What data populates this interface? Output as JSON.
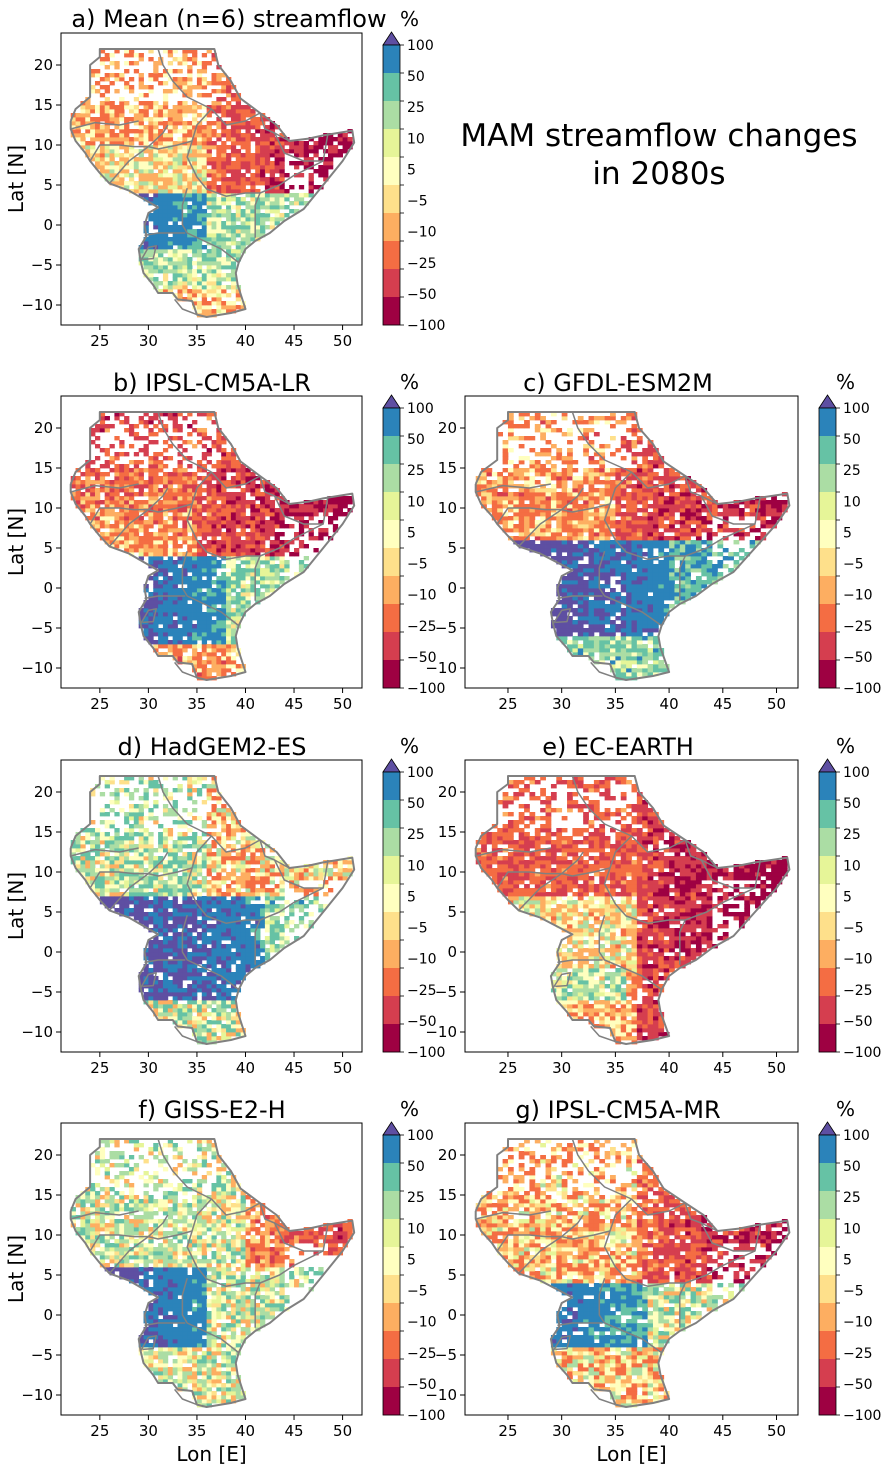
{
  "figure": {
    "title_lines": [
      "MAM streamflow changes",
      "in 2080s"
    ],
    "xlabel": "Lon [E]",
    "ylabel": "Lat [N]",
    "x_ticks": [
      25,
      30,
      35,
      40,
      45,
      50
    ],
    "y_ticks": [
      20,
      15,
      10,
      5,
      0,
      -5,
      -10
    ],
    "xlim": [
      21,
      52
    ],
    "ylim": [
      -12.5,
      24
    ],
    "colorbar": {
      "unit": "%",
      "labels": [
        "100",
        "50",
        "25",
        "10",
        "5",
        "−5",
        "−10",
        "−25",
        "−50",
        "−100"
      ],
      "colors": [
        "#2b83ba",
        "#66c2a5",
        "#abdda4",
        "#e6f598",
        "#ffffbf",
        "#fee08b",
        "#fdae61",
        "#f46d43",
        "#d53e4f",
        "#9e0142"
      ],
      "extend_max_color": "#5e4fa2",
      "extend": "max"
    },
    "boundary_color": "#808080"
  },
  "panels": [
    {
      "id": "a",
      "title": "a)  Mean (n=6) streamflow",
      "pattern": "mean"
    },
    {
      "id": "b",
      "title": "b)  IPSL-CM5A-LR",
      "pattern": "ipsl_lr"
    },
    {
      "id": "c",
      "title": "c)  GFDL-ESM2M",
      "pattern": "gfdl"
    },
    {
      "id": "d",
      "title": "d)  HadGEM2-ES",
      "pattern": "hadgem"
    },
    {
      "id": "e",
      "title": "e)  EC-EARTH",
      "pattern": "ecearth"
    },
    {
      "id": "f",
      "title": "f)  GISS-E2-H",
      "pattern": "giss"
    },
    {
      "id": "g",
      "title": "g)  IPSL-CM5A-MR",
      "pattern": "ipsl_mr"
    }
  ]
}
